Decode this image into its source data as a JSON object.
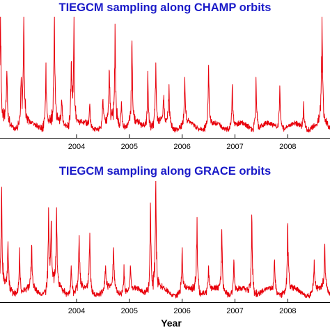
{
  "chart_data": [
    {
      "type": "line",
      "title": "TIEGCM sampling along CHAMP orbits",
      "xlabel": "",
      "ylabel": "",
      "xlim": [
        2002.55,
        2008.8
      ],
      "ylim": [
        0,
        1
      ],
      "x_ticks": [
        2004,
        2005,
        2006,
        2007,
        2008
      ],
      "x_tick_labels": [
        "2004",
        "2005",
        "2006",
        "2007",
        "2008"
      ],
      "line_color": "#e8000b",
      "baseline": 0.07,
      "seed": 7,
      "peaks": [
        {
          "x": 2002.56,
          "y": 1.0
        },
        {
          "x": 2002.68,
          "y": 0.55
        },
        {
          "x": 2002.95,
          "y": 0.5
        },
        {
          "x": 2003.0,
          "y": 1.0
        },
        {
          "x": 2003.42,
          "y": 0.62
        },
        {
          "x": 2003.58,
          "y": 1.0
        },
        {
          "x": 2003.72,
          "y": 0.3
        },
        {
          "x": 2003.9,
          "y": 0.62
        },
        {
          "x": 2003.95,
          "y": 1.0
        },
        {
          "x": 2004.25,
          "y": 0.28
        },
        {
          "x": 2004.5,
          "y": 0.32
        },
        {
          "x": 2004.62,
          "y": 0.55
        },
        {
          "x": 2004.73,
          "y": 0.94
        },
        {
          "x": 2004.85,
          "y": 0.3
        },
        {
          "x": 2005.05,
          "y": 0.8
        },
        {
          "x": 2005.35,
          "y": 0.55
        },
        {
          "x": 2005.5,
          "y": 0.62
        },
        {
          "x": 2005.65,
          "y": 0.3
        },
        {
          "x": 2005.75,
          "y": 0.44
        },
        {
          "x": 2006.05,
          "y": 0.5
        },
        {
          "x": 2006.5,
          "y": 0.6
        },
        {
          "x": 2006.95,
          "y": 0.44
        },
        {
          "x": 2007.4,
          "y": 0.5
        },
        {
          "x": 2007.85,
          "y": 0.43
        },
        {
          "x": 2008.3,
          "y": 0.3
        },
        {
          "x": 2008.65,
          "y": 1.0
        }
      ]
    },
    {
      "type": "line",
      "title": "TIEGCM sampling along GRACE orbits",
      "xlabel": "Year",
      "ylabel": "",
      "xlim": [
        2002.55,
        2008.8
      ],
      "ylim": [
        0,
        1
      ],
      "x_ticks": [
        2004,
        2005,
        2006,
        2007,
        2008
      ],
      "x_tick_labels": [
        "2004",
        "2005",
        "2006",
        "2007",
        "2008"
      ],
      "line_color": "#e8000b",
      "baseline": 0.06,
      "seed": 13,
      "peaks": [
        {
          "x": 2002.58,
          "y": 0.95
        },
        {
          "x": 2002.7,
          "y": 0.5
        },
        {
          "x": 2002.92,
          "y": 0.45
        },
        {
          "x": 2003.15,
          "y": 0.47
        },
        {
          "x": 2003.47,
          "y": 0.78
        },
        {
          "x": 2003.52,
          "y": 0.67
        },
        {
          "x": 2003.62,
          "y": 0.78
        },
        {
          "x": 2003.9,
          "y": 0.3
        },
        {
          "x": 2004.05,
          "y": 0.55
        },
        {
          "x": 2004.25,
          "y": 0.57
        },
        {
          "x": 2004.55,
          "y": 0.3
        },
        {
          "x": 2004.7,
          "y": 0.45
        },
        {
          "x": 2004.9,
          "y": 0.31
        },
        {
          "x": 2005.02,
          "y": 0.3
        },
        {
          "x": 2005.4,
          "y": 0.82
        },
        {
          "x": 2005.5,
          "y": 1.0
        },
        {
          "x": 2006.0,
          "y": 0.45
        },
        {
          "x": 2006.28,
          "y": 0.7
        },
        {
          "x": 2006.5,
          "y": 0.3
        },
        {
          "x": 2006.75,
          "y": 0.6
        },
        {
          "x": 2006.98,
          "y": 0.35
        },
        {
          "x": 2007.32,
          "y": 0.72
        },
        {
          "x": 2007.75,
          "y": 0.35
        },
        {
          "x": 2008.0,
          "y": 0.65
        },
        {
          "x": 2008.5,
          "y": 0.35
        },
        {
          "x": 2008.7,
          "y": 0.48
        }
      ]
    }
  ]
}
